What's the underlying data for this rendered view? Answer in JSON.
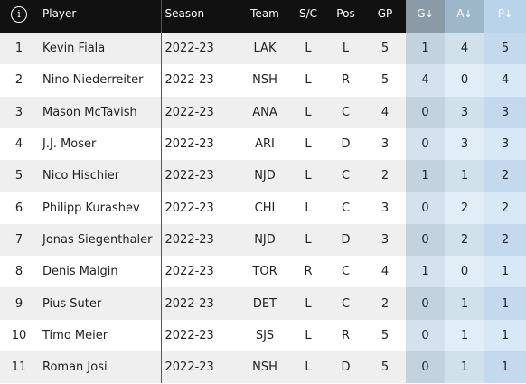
{
  "header": {
    "info_icon": "info-icon",
    "info_glyph": "i",
    "player": "Player",
    "season": "Season",
    "team": "Team",
    "sc": "S/C",
    "pos": "Pos",
    "gp": "GP",
    "g": "G",
    "a": "A",
    "p": "P",
    "sort_arrow": "↓"
  },
  "rows": [
    {
      "rank": "1",
      "player": "Kevin Fiala",
      "season": "2022-23",
      "team": "LAK",
      "sc": "L",
      "pos": "L",
      "gp": "5",
      "g": "1",
      "a": "4",
      "p": "5"
    },
    {
      "rank": "2",
      "player": "Nino Niederreiter",
      "season": "2022-23",
      "team": "NSH",
      "sc": "L",
      "pos": "R",
      "gp": "5",
      "g": "4",
      "a": "0",
      "p": "4"
    },
    {
      "rank": "3",
      "player": "Mason McTavish",
      "season": "2022-23",
      "team": "ANA",
      "sc": "L",
      "pos": "C",
      "gp": "4",
      "g": "0",
      "a": "3",
      "p": "3"
    },
    {
      "rank": "4",
      "player": "J.J. Moser",
      "season": "2022-23",
      "team": "ARI",
      "sc": "L",
      "pos": "D",
      "gp": "3",
      "g": "0",
      "a": "3",
      "p": "3"
    },
    {
      "rank": "5",
      "player": "Nico Hischier",
      "season": "2022-23",
      "team": "NJD",
      "sc": "L",
      "pos": "C",
      "gp": "2",
      "g": "1",
      "a": "1",
      "p": "2"
    },
    {
      "rank": "6",
      "player": "Philipp Kurashev",
      "season": "2022-23",
      "team": "CHI",
      "sc": "L",
      "pos": "C",
      "gp": "3",
      "g": "0",
      "a": "2",
      "p": "2"
    },
    {
      "rank": "7",
      "player": "Jonas Siegenthaler",
      "season": "2022-23",
      "team": "NJD",
      "sc": "L",
      "pos": "D",
      "gp": "3",
      "g": "0",
      "a": "2",
      "p": "2"
    },
    {
      "rank": "8",
      "player": "Denis Malgin",
      "season": "2022-23",
      "team": "TOR",
      "sc": "R",
      "pos": "C",
      "gp": "4",
      "g": "1",
      "a": "0",
      "p": "1"
    },
    {
      "rank": "9",
      "player": "Pius Suter",
      "season": "2022-23",
      "team": "DET",
      "sc": "L",
      "pos": "C",
      "gp": "2",
      "g": "0",
      "a": "1",
      "p": "1"
    },
    {
      "rank": "10",
      "player": "Timo Meier",
      "season": "2022-23",
      "team": "SJS",
      "sc": "L",
      "pos": "R",
      "gp": "5",
      "g": "0",
      "a": "1",
      "p": "1"
    },
    {
      "rank": "11",
      "player": "Roman Josi",
      "season": "2022-23",
      "team": "NSH",
      "sc": "L",
      "pos": "D",
      "gp": "5",
      "g": "0",
      "a": "1",
      "p": "1"
    }
  ]
}
